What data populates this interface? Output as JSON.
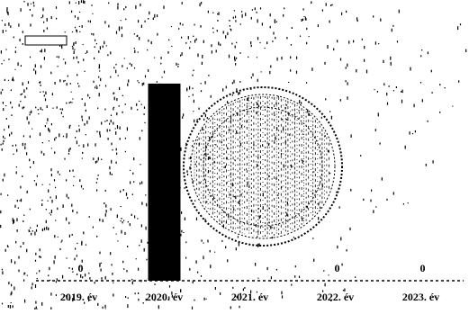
{
  "chart_data": {
    "type": "bar",
    "categories": [
      "2019. év",
      "2020. év",
      "2021. év",
      "2022. év",
      "2023. év"
    ],
    "values": [
      0,
      1,
      0,
      0,
      0
    ],
    "data_labels": [
      "0",
      "",
      "",
      "0",
      "0"
    ],
    "title": "",
    "xlabel": "",
    "ylabel": "",
    "ylim": [
      0,
      1.15
    ],
    "grid": false,
    "legend": "none",
    "bar_color": "#000000",
    "background": "#ffffff"
  }
}
